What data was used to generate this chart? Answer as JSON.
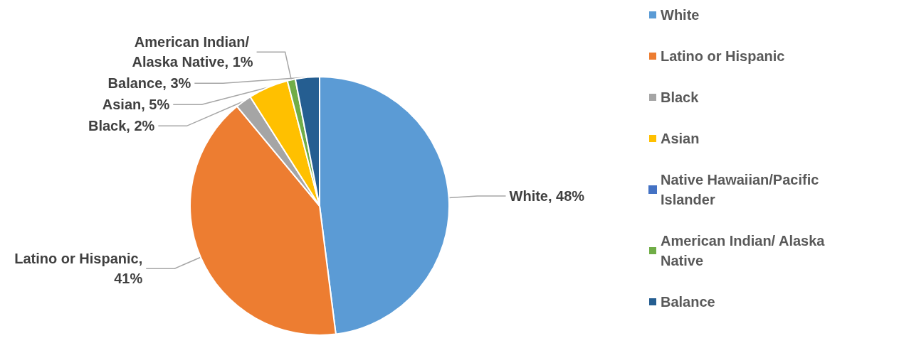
{
  "chart_data": {
    "type": "pie",
    "categories": [
      "White",
      "Latino or Hispanic",
      "Black",
      "Asian",
      "Native Hawaiian/Pacific Islander",
      "American Indian/ Alaska Native",
      "Balance"
    ],
    "values": [
      48,
      41,
      2,
      5,
      0,
      1,
      3
    ],
    "colors": [
      "#5b9bd5",
      "#ed7d31",
      "#a5a5a5",
      "#ffc000",
      "#4472c4",
      "#70ad47",
      "#255e91"
    ],
    "value_labels": [
      "White, 48%",
      "Latino or Hispanic, 41%",
      "Black, 2%",
      "Asian, 5%",
      null,
      "American Indian/ Alaska Native, 1%",
      "Balance, 3%"
    ],
    "legend": "right"
  }
}
